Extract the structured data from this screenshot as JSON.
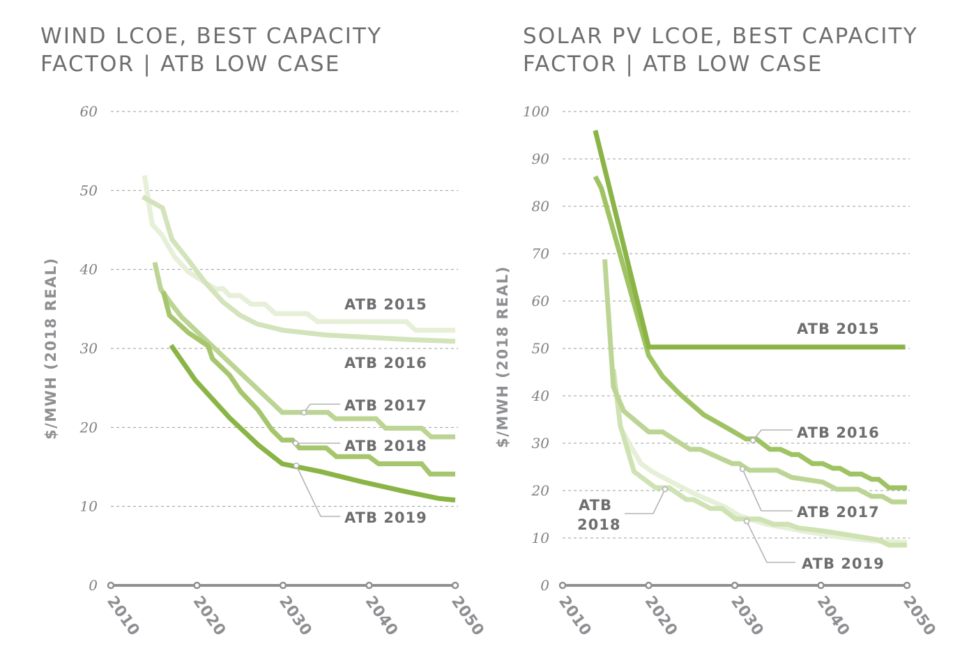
{
  "chart_data": [
    {
      "type": "line",
      "id": "wind",
      "title": "WIND LCOE, BEST CAPACITY\nFACTOR | ATB LOW CASE",
      "xlabel": "",
      "ylabel": "$/MWH (2018 REAL)",
      "xlim": [
        2010,
        2050
      ],
      "ylim": [
        0,
        60
      ],
      "xticks": [
        2010,
        2020,
        2030,
        2040,
        2050
      ],
      "yticks": [
        0,
        10,
        20,
        30,
        40,
        50,
        60
      ],
      "grid": true,
      "legend": "inline-labels",
      "series": [
        {
          "name": "ATB 2015",
          "color": "#e6efd8",
          "points": [
            [
              2013.9,
              51.9
            ],
            [
              2014.8,
              45.7
            ],
            [
              2015.9,
              44.4
            ],
            [
              2017.4,
              41.6
            ],
            [
              2019,
              39.7
            ],
            [
              2021,
              38.3
            ],
            [
              2022.2,
              37.5
            ],
            [
              2023,
              37.6
            ],
            [
              2023.8,
              36.7
            ],
            [
              2025,
              36.7
            ],
            [
              2026.3,
              35.6
            ],
            [
              2027.9,
              35.6
            ],
            [
              2029.1,
              34.4
            ],
            [
              2032.8,
              34.4
            ],
            [
              2034,
              33.4
            ],
            [
              2044.3,
              33.4
            ],
            [
              2045.4,
              32.3
            ],
            [
              2050,
              32.3
            ]
          ]
        },
        {
          "name": "ATB 2016",
          "color": "#d3e3bb",
          "points": [
            [
              2013.7,
              49.2
            ],
            [
              2016,
              47.8
            ],
            [
              2017.1,
              43.8
            ],
            [
              2019,
              41.2
            ],
            [
              2021,
              38.3
            ],
            [
              2023,
              35.9
            ],
            [
              2025,
              34.2
            ],
            [
              2027,
              33.1
            ],
            [
              2030,
              32.3
            ],
            [
              2035,
              31.7
            ],
            [
              2040,
              31.4
            ],
            [
              2045,
              31.1
            ],
            [
              2050,
              30.9
            ]
          ]
        },
        {
          "name": "ATB 2017",
          "color": "#bcd595",
          "points": [
            [
              2015.1,
              40.9
            ],
            [
              2015.8,
              37.5
            ],
            [
              2017,
              35.7
            ],
            [
              2018.2,
              34
            ],
            [
              2029.9,
              21.9
            ],
            [
              2035.2,
              21.9
            ],
            [
              2036.1,
              21.1
            ],
            [
              2040.8,
              21.1
            ],
            [
              2041.9,
              19.9
            ],
            [
              2046.1,
              19.9
            ],
            [
              2047.2,
              18.8
            ],
            [
              2050,
              18.8
            ]
          ]
        },
        {
          "name": "ATB 2018",
          "color": "#a6c66d",
          "points": [
            [
              2016.1,
              37.2
            ],
            [
              2016.8,
              34.2
            ],
            [
              2019,
              32
            ],
            [
              2021.3,
              30.3
            ],
            [
              2021.8,
              28.7
            ],
            [
              2023.8,
              26.6
            ],
            [
              2025.1,
              24.5
            ],
            [
              2027.1,
              22.2
            ],
            [
              2028.7,
              19.7
            ],
            [
              2029.9,
              18.4
            ],
            [
              2031.1,
              18.4
            ],
            [
              2031.9,
              17.4
            ],
            [
              2035,
              17.4
            ],
            [
              2036.2,
              16.3
            ],
            [
              2040,
              16.3
            ],
            [
              2041.1,
              15.4
            ],
            [
              2046.1,
              15.4
            ],
            [
              2047.1,
              14.1
            ],
            [
              2050,
              14.1
            ]
          ]
        },
        {
          "name": "ATB 2019",
          "color": "#8bb446",
          "points": [
            [
              2017,
              30.4
            ],
            [
              2019.8,
              26
            ],
            [
              2023.8,
              21.2
            ],
            [
              2027.1,
              17.8
            ],
            [
              2029.9,
              15.4
            ],
            [
              2034.4,
              14.4
            ],
            [
              2039.2,
              13.1
            ],
            [
              2044.1,
              11.9
            ],
            [
              2048.1,
              11
            ],
            [
              2050,
              10.8
            ]
          ]
        }
      ],
      "annotations": [
        {
          "label": "ATB 2015",
          "series": "ATB 2015",
          "leader": false
        },
        {
          "label": "ATB 2016",
          "series": "ATB 2016",
          "leader": false
        },
        {
          "label": "ATB 2017",
          "series": "ATB 2017",
          "leader": true,
          "anchor": [
            2032.3,
            21.9
          ]
        },
        {
          "label": "ATB 2018",
          "series": "ATB 2018",
          "leader": true,
          "anchor": [
            2031.1,
            18.4
          ]
        },
        {
          "label": "ATB 2019",
          "series": "ATB 2019",
          "leader": true,
          "anchor": [
            2031.3,
            15.2
          ]
        }
      ]
    },
    {
      "type": "line",
      "id": "solar",
      "title": "SOLAR PV LCOE, BEST CAPACITY\nFACTOR | ATB LOW CASE",
      "xlabel": "",
      "ylabel": "$/MWH (2018 REAL)",
      "xlim": [
        2010,
        2050
      ],
      "ylim": [
        0,
        100
      ],
      "xticks": [
        2010,
        2020,
        2030,
        2040,
        2050
      ],
      "yticks": [
        0,
        10,
        20,
        30,
        40,
        50,
        60,
        70,
        80,
        90,
        100
      ],
      "grid": true,
      "legend": "inline-labels",
      "series": [
        {
          "name": "ATB 2015",
          "color": "#8bb446",
          "points": [
            [
              2013.8,
              96
            ],
            [
              2020,
              50.3
            ],
            [
              2049.8,
              50.3
            ]
          ]
        },
        {
          "name": "ATB 2016",
          "color": "#9fc363",
          "points": [
            [
              2013.8,
              86.3
            ],
            [
              2014.5,
              83.8
            ],
            [
              2020,
              48.5
            ],
            [
              2020.8,
              46.3
            ],
            [
              2021.6,
              44.1
            ],
            [
              2023.6,
              40.4
            ],
            [
              2026.4,
              36
            ],
            [
              2029.7,
              32.6
            ],
            [
              2031.3,
              30.9
            ],
            [
              2032.5,
              30.9
            ],
            [
              2034.1,
              28.7
            ],
            [
              2035.3,
              28.7
            ],
            [
              2036.6,
              27.6
            ],
            [
              2037.4,
              27.6
            ],
            [
              2039,
              25.7
            ],
            [
              2040.2,
              25.7
            ],
            [
              2041.4,
              24.7
            ],
            [
              2042.2,
              24.7
            ],
            [
              2043.4,
              23.5
            ],
            [
              2044.7,
              23.5
            ],
            [
              2045.9,
              22.4
            ],
            [
              2046.7,
              22.4
            ],
            [
              2047.9,
              20.6
            ],
            [
              2050,
              20.6
            ]
          ]
        },
        {
          "name": "ATB 2017",
          "color": "#bcd595",
          "points": [
            [
              2014.9,
              68.8
            ],
            [
              2015.9,
              41.9
            ],
            [
              2017.1,
              36.8
            ],
            [
              2020,
              32.4
            ],
            [
              2021.6,
              32.4
            ],
            [
              2024.8,
              28.7
            ],
            [
              2026,
              28.7
            ],
            [
              2029.7,
              25.7
            ],
            [
              2030.5,
              25.7
            ],
            [
              2031.7,
              24.3
            ],
            [
              2034.9,
              24.3
            ],
            [
              2036.6,
              22.8
            ],
            [
              2040.2,
              21.8
            ],
            [
              2041.8,
              20.3
            ],
            [
              2044.3,
              20.3
            ],
            [
              2045.9,
              18.8
            ],
            [
              2047.1,
              18.8
            ],
            [
              2048.3,
              17.6
            ],
            [
              2050,
              17.6
            ]
          ]
        },
        {
          "name": "ATB 2018",
          "color": "#cfe2b3",
          "points": [
            [
              2015.9,
              45.6
            ],
            [
              2016.7,
              33.8
            ],
            [
              2018.3,
              24
            ],
            [
              2020.8,
              20.6
            ],
            [
              2022.4,
              20.6
            ],
            [
              2024.4,
              18.1
            ],
            [
              2025.2,
              18.1
            ],
            [
              2027.2,
              16.2
            ],
            [
              2028.5,
              16.2
            ],
            [
              2030.1,
              14
            ],
            [
              2032.9,
              14
            ],
            [
              2034.5,
              12.9
            ],
            [
              2036.2,
              12.9
            ],
            [
              2037.4,
              12.1
            ],
            [
              2040.2,
              11.5
            ],
            [
              2043.4,
              10.6
            ],
            [
              2046.7,
              9.6
            ],
            [
              2047.9,
              8.5
            ],
            [
              2050,
              8.5
            ]
          ]
        },
        {
          "name": "ATB 2019",
          "color": "#e6efd8",
          "points": [
            [
              2016.7,
              33.4
            ],
            [
              2017.9,
              29.4
            ],
            [
              2019.1,
              25.7
            ],
            [
              2020.4,
              24
            ],
            [
              2023.2,
              21.3
            ],
            [
              2025.6,
              19.1
            ],
            [
              2028.9,
              16.5
            ],
            [
              2030.5,
              14.7
            ],
            [
              2033.7,
              12.9
            ],
            [
              2037.8,
              11.5
            ],
            [
              2041.8,
              10.3
            ],
            [
              2045.9,
              9.4
            ],
            [
              2050,
              9.1
            ]
          ]
        }
      ],
      "annotations": [
        {
          "label": "ATB 2015",
          "series": "ATB 2015",
          "leader": false
        },
        {
          "label": "ATB 2016",
          "series": "ATB 2016",
          "leader": true,
          "anchor": [
            2032.2,
            30.9
          ]
        },
        {
          "label": "ATB 2017",
          "series": "ATB 2017",
          "leader": true,
          "anchor": [
            2031.2,
            24.8
          ]
        },
        {
          "label": "ATB 2018",
          "series": "ATB 2018",
          "leader": true,
          "anchor": [
            2021.8,
            20.6
          ]
        },
        {
          "label": "ATB 2019",
          "series": "ATB 2019",
          "leader": true,
          "anchor": [
            2031.3,
            13.5
          ]
        }
      ]
    }
  ],
  "colors": {
    "title": "#6d6e70",
    "axis": "#8e8f92",
    "grid": "#9b9b9b",
    "leader": "#b3b3b3"
  }
}
